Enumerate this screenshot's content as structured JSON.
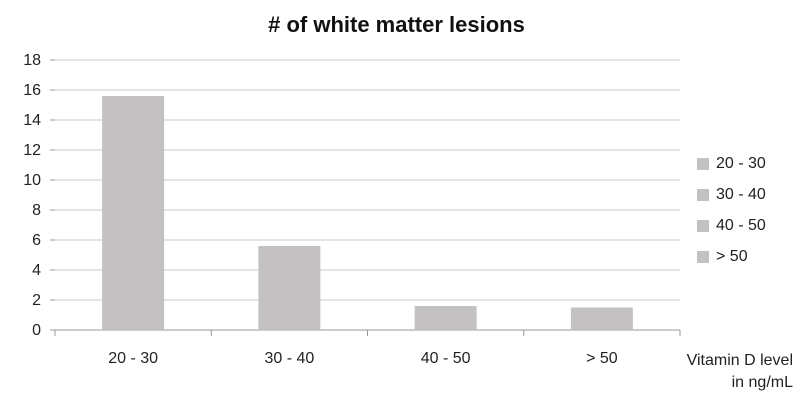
{
  "chart_data": {
    "type": "bar",
    "title": "# of white matter lesions",
    "xlabel_line1": "Vitamin D level",
    "xlabel_line2": "in ng/mL",
    "ylabel": "",
    "categories": [
      "20 - 30",
      "30 - 40",
      "40 - 50",
      "> 50"
    ],
    "values": [
      15.6,
      5.6,
      1.6,
      1.5
    ],
    "ylim": [
      0,
      18
    ],
    "yticks": [
      0,
      2,
      4,
      6,
      8,
      10,
      12,
      14,
      16,
      18
    ],
    "grid": true,
    "legend": {
      "position": "right",
      "entries": [
        "20 - 30",
        "30 - 40",
        "40 - 50",
        "> 50"
      ]
    },
    "colors": {
      "bar": "#c3c1c2",
      "grid": "#c8c8c8",
      "axis": "#999999"
    }
  }
}
